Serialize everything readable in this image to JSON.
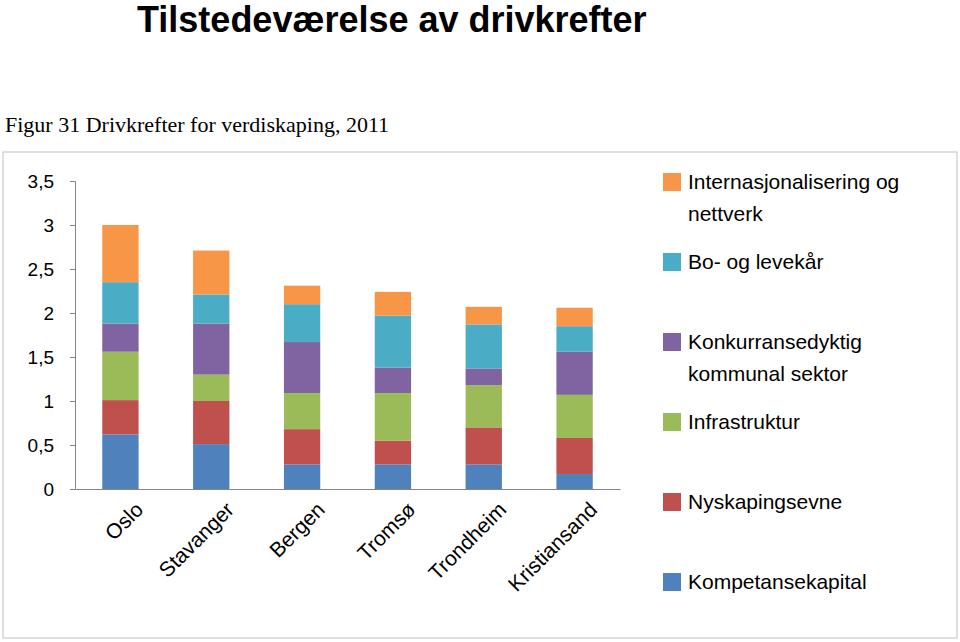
{
  "chart_data": {
    "type": "bar",
    "stacked": true,
    "grid": false,
    "legend": "right",
    "title": "Tilstedeværelse av drivkrefter",
    "subtitle": "Figur 31 Drivkrefter for verdiskaping, 2011",
    "categories": [
      "Oslo",
      "Stavanger",
      "Bergen",
      "Tromsø",
      "Trondheim",
      "Kristiansand"
    ],
    "ylim": [
      0,
      3.5
    ],
    "yticks": [
      0,
      {
        "value": 0.5,
        "label": "0,5"
      },
      1,
      {
        "value": 1.5,
        "label": "1,5"
      },
      2,
      {
        "value": 2.5,
        "label": "2,5"
      },
      3,
      {
        "value": 3.5,
        "label": "3,5"
      }
    ],
    "series": [
      {
        "name": "Kompetansekapital",
        "color": "#4f81bd",
        "values": [
          0.62,
          0.51,
          0.28,
          0.28,
          0.28,
          0.17
        ]
      },
      {
        "name": "Nyskapingsevne",
        "color": "#c0504d",
        "values": [
          0.39,
          0.49,
          0.4,
          0.27,
          0.42,
          0.41
        ]
      },
      {
        "name": "Infrastruktur",
        "color": "#9bbb59",
        "values": [
          0.55,
          0.3,
          0.41,
          0.54,
          0.48,
          0.49
        ]
      },
      {
        "name": "Konkurransedyktig kommunal sektor",
        "color": "#8064a2",
        "values": [
          0.32,
          0.58,
          0.58,
          0.29,
          0.19,
          0.49
        ]
      },
      {
        "name": "Bo- og levekår",
        "color": "#4bacc6",
        "values": [
          0.47,
          0.33,
          0.43,
          0.59,
          0.5,
          0.29
        ]
      },
      {
        "name": "Internasjonalisering og nettverk",
        "color": "#f79646",
        "values": [
          0.65,
          0.5,
          0.21,
          0.27,
          0.2,
          0.21
        ]
      }
    ]
  }
}
